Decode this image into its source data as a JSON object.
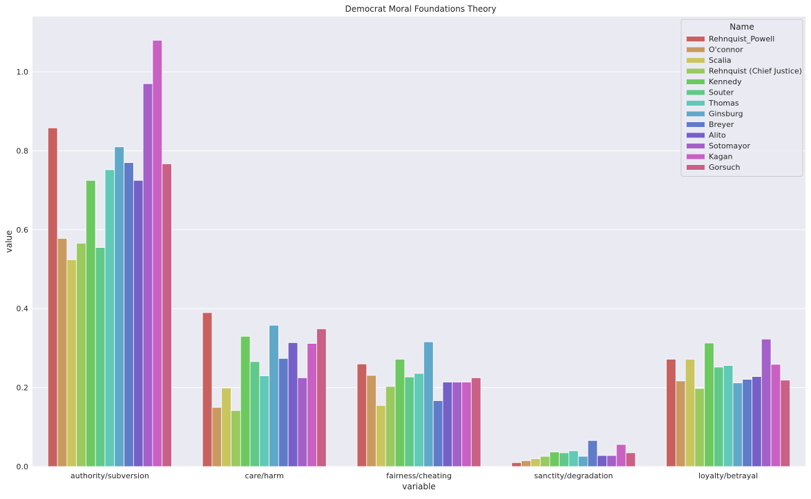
{
  "chart_data": {
    "type": "bar",
    "title": "Democrat Moral Foundations Theory",
    "xlabel": "variable",
    "ylabel": "value",
    "ylim": [
      0,
      1.14
    ],
    "yticks": [
      "0.0",
      "0.2",
      "0.4",
      "0.6",
      "0.8",
      "1.0"
    ],
    "grid": true,
    "legend": {
      "title": "Name",
      "placement": "top-right"
    },
    "categories": [
      "authority/subversion",
      "care/harm",
      "fairness/cheating",
      "sanctity/degradation",
      "loyalty/betrayal"
    ],
    "series": [
      {
        "name": "Rehnquist_Powell",
        "color": "#c96060",
        "values": [
          0.858,
          0.39,
          0.26,
          0.01,
          0.272
        ]
      },
      {
        "name": "O'connor",
        "color": "#c99a60",
        "values": [
          0.578,
          0.15,
          0.231,
          0.015,
          0.217
        ]
      },
      {
        "name": "Scalia",
        "color": "#c9c660",
        "values": [
          0.524,
          0.199,
          0.155,
          0.02,
          0.272
        ]
      },
      {
        "name": "Rehnquist (Chief Justice)",
        "color": "#9ac960",
        "values": [
          0.566,
          0.142,
          0.203,
          0.026,
          0.198
        ]
      },
      {
        "name": "Kennedy",
        "color": "#6cc960",
        "values": [
          0.725,
          0.33,
          0.272,
          0.037,
          0.313
        ]
      },
      {
        "name": "Souter",
        "color": "#60c98a",
        "values": [
          0.555,
          0.266,
          0.227,
          0.035,
          0.252
        ]
      },
      {
        "name": "Thomas",
        "color": "#60c9b8",
        "values": [
          0.752,
          0.23,
          0.236,
          0.04,
          0.256
        ]
      },
      {
        "name": "Ginsburg",
        "color": "#60a8c9",
        "values": [
          0.81,
          0.358,
          0.316,
          0.026,
          0.212
        ]
      },
      {
        "name": "Breyer",
        "color": "#607bc9",
        "values": [
          0.77,
          0.274,
          0.167,
          0.066,
          0.221
        ]
      },
      {
        "name": "Alito",
        "color": "#7560c9",
        "values": [
          0.725,
          0.314,
          0.214,
          0.028,
          0.228
        ]
      },
      {
        "name": "Sotomayor",
        "color": "#a460c9",
        "values": [
          0.97,
          0.225,
          0.214,
          0.028,
          0.323
        ]
      },
      {
        "name": "Kagan",
        "color": "#c960c4",
        "values": [
          1.08,
          0.312,
          0.214,
          0.056,
          0.259
        ]
      },
      {
        "name": "Gorsuch",
        "color": "#c96086",
        "values": [
          0.767,
          0.349,
          0.225,
          0.035,
          0.219
        ]
      }
    ]
  }
}
